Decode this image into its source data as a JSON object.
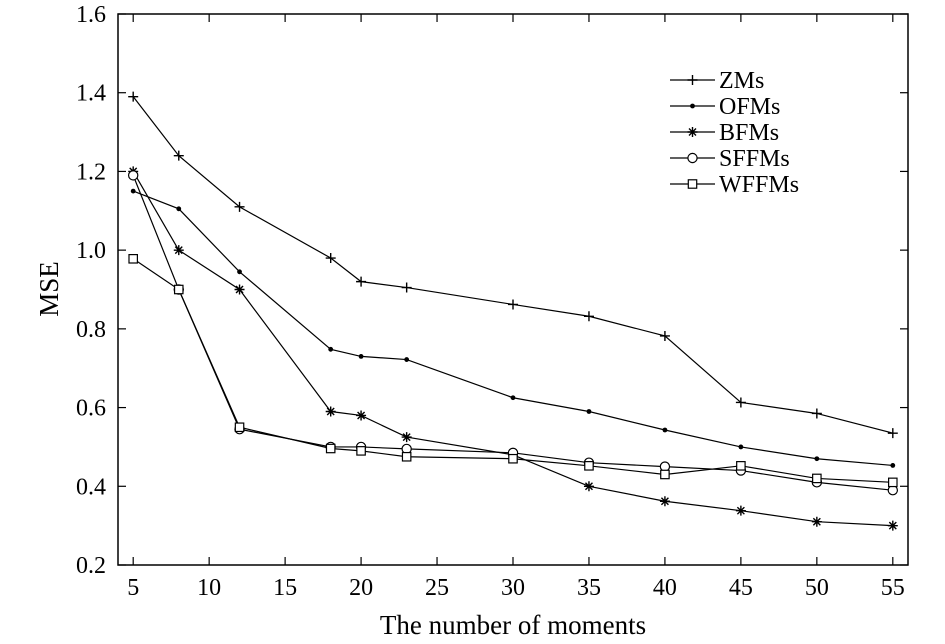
{
  "chart_data": {
    "type": "line",
    "title": "",
    "xlabel": "The number of moments",
    "ylabel": "MSE",
    "xlim": [
      4,
      56
    ],
    "ylim": [
      0.2,
      1.6
    ],
    "x": [
      5,
      8,
      12,
      18,
      20,
      23,
      30,
      35,
      40,
      45,
      50,
      55
    ],
    "xticks": [
      5,
      10,
      15,
      20,
      25,
      30,
      35,
      40,
      45,
      50,
      55
    ],
    "yticks": [
      "0.2",
      "0.4",
      "0.6",
      "0.8",
      "1.0",
      "1.2",
      "1.4",
      "1.6"
    ],
    "grid": false,
    "legend_position": "top-right",
    "series": [
      {
        "name": "ZMs",
        "marker": "plus",
        "values": [
          1.39,
          1.24,
          1.11,
          0.98,
          0.92,
          0.905,
          0.862,
          0.832,
          0.782,
          0.613,
          0.585,
          0.535
        ]
      },
      {
        "name": "OFMs",
        "marker": "dot",
        "values": [
          1.15,
          1.105,
          0.945,
          0.748,
          0.73,
          0.722,
          0.625,
          0.59,
          0.543,
          0.5,
          0.47,
          0.453
        ]
      },
      {
        "name": "BFMs",
        "marker": "star",
        "values": [
          1.2,
          1.0,
          0.9,
          0.59,
          0.58,
          0.525,
          0.48,
          0.4,
          0.362,
          0.338,
          0.31,
          0.3
        ]
      },
      {
        "name": "SFFMs",
        "marker": "circle",
        "values": [
          1.19,
          0.9,
          0.545,
          0.5,
          0.5,
          0.495,
          0.485,
          0.46,
          0.45,
          0.44,
          0.41,
          0.39
        ]
      },
      {
        "name": "WFFMs",
        "marker": "square",
        "values": [
          0.978,
          0.9,
          0.55,
          0.496,
          0.49,
          0.475,
          0.47,
          0.452,
          0.43,
          0.452,
          0.42,
          0.41
        ]
      }
    ]
  }
}
